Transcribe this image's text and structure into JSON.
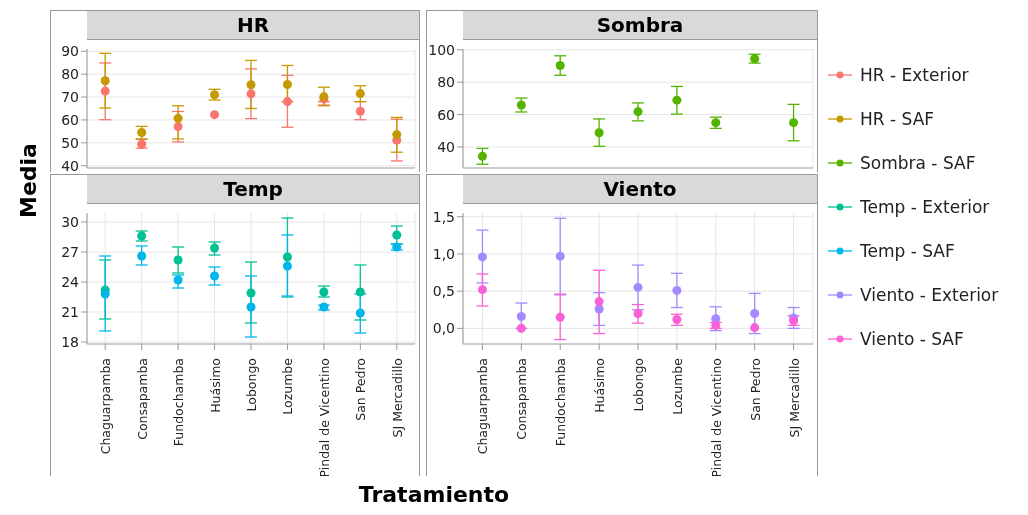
{
  "chart_data": [
    {
      "type": "scatter",
      "title": "HR",
      "ylabel": "Media",
      "categories": [
        "Chaguarpamba",
        "Consapamba",
        "Fundochamba",
        "Huásimo",
        "Lobongo",
        "Lozumbe",
        "Pindal de Vicentino",
        "San Pedro",
        "SJ Mercadillo"
      ],
      "ylim": [
        39,
        91
      ],
      "yticks": [
        40,
        50,
        60,
        70,
        80,
        90
      ],
      "tick_labels": "y",
      "grid": true,
      "marker": "circle",
      "legend": "right",
      "series": [
        {
          "name": "HR - Exterior",
          "color": "#f8766d",
          "values": [
            72.6,
            49.4,
            57.1,
            62.3,
            71.4,
            68.0,
            69.2,
            63.8,
            51.2
          ],
          "errors": [
            [
              60.1,
              84.9
            ],
            [
              47.7,
              51.5
            ],
            [
              50.4,
              63.7
            ],
            null,
            [
              60.6,
              82.3
            ],
            [
              56.8,
              79.5
            ],
            [
              66.5,
              68.0
            ],
            [
              60.1,
              68.0
            ],
            [
              42.1,
              60.3
            ]
          ]
        },
        {
          "name": "HR - SAF",
          "color": "#c49a00",
          "values": [
            77.1,
            54.5,
            60.7,
            71.0,
            75.4,
            75.5,
            70.2,
            71.5,
            53.6
          ],
          "errors": [
            [
              65.2,
              89.1
            ],
            [
              51.7,
              57.2
            ],
            [
              51.7,
              66.2
            ],
            [
              68.7,
              73.4
            ],
            [
              65.0,
              86.0
            ],
            [
              68.0,
              83.8
            ],
            [
              66.2,
              74.3
            ],
            [
              68.0,
              74.9
            ],
            [
              45.9,
              61.1
            ]
          ]
        }
      ]
    },
    {
      "type": "scatter",
      "title": "Sombra",
      "categories": [
        "Chaguarpamba",
        "Consapamba",
        "Fundochamba",
        "Huásimo",
        "Lobongo",
        "Lozumbe",
        "Pindal de Vicentino",
        "San Pedro",
        "SJ Mercadillo"
      ],
      "ylim": [
        27,
        100.5
      ],
      "yticks": [
        40,
        60,
        80,
        100
      ],
      "tick_labels": "y",
      "grid": true,
      "marker": "circle",
      "legend": "right",
      "series": [
        {
          "name": "Sombra - SAF",
          "color": "#53b400",
          "values": [
            34.2,
            65.9,
            90.3,
            48.8,
            61.8,
            68.9,
            55.0,
            94.5,
            55.0
          ],
          "errors": [
            [
              29.3,
              39.1
            ],
            [
              61.6,
              70.2
            ],
            [
              84.3,
              96.3
            ],
            [
              40.4,
              57.3
            ],
            [
              56.1,
              67.2
            ],
            [
              60.3,
              77.4
            ],
            [
              51.5,
              58.4
            ],
            [
              91.8,
              97.3
            ],
            [
              43.8,
              66.3
            ]
          ]
        }
      ]
    },
    {
      "type": "scatter",
      "title": "Temp",
      "xlabel": "Tratamiento",
      "categories": [
        "Chaguarpamba",
        "Consapamba",
        "Fundochamba",
        "Huásimo",
        "Lobongo",
        "Lozumbe",
        "Pindal de Vicentino",
        "San Pedro",
        "SJ Mercadillo"
      ],
      "ylim": [
        17.8,
        30.9
      ],
      "yticks": [
        18,
        21,
        24,
        27,
        30
      ],
      "grid": true,
      "marker": "circle",
      "legend": "right",
      "series": [
        {
          "name": "Temp - Exterior",
          "color": "#00c094",
          "values": [
            23.2,
            28.6,
            26.2,
            27.4,
            22.9,
            26.5,
            23.0,
            23.0,
            28.7
          ],
          "errors": [
            [
              20.3,
              26.2
            ],
            [
              28.1,
              29.1
            ],
            [
              24.9,
              27.5
            ],
            [
              26.7,
              28.0
            ],
            [
              19.9,
              26.0
            ],
            [
              22.5,
              30.4
            ],
            [
              22.5,
              23.6
            ],
            [
              20.2,
              25.7
            ],
            [
              27.8,
              29.6
            ]
          ]
        },
        {
          "name": "Temp - SAF",
          "color": "#00b6eb",
          "values": [
            22.8,
            26.6,
            24.2,
            24.6,
            21.5,
            25.6,
            21.5,
            20.9,
            27.5
          ],
          "errors": [
            [
              19.1,
              26.6
            ],
            [
              25.7,
              27.6
            ],
            [
              23.4,
              24.7
            ],
            [
              23.7,
              25.5
            ],
            [
              18.5,
              24.6
            ],
            [
              22.6,
              28.7
            ],
            [
              21.2,
              21.7
            ],
            [
              18.9,
              22.8
            ],
            [
              27.2,
              27.8
            ]
          ]
        }
      ]
    },
    {
      "type": "scatter",
      "title": "Viento",
      "categories": [
        "Chaguarpamba",
        "Consapamba",
        "Fundochamba",
        "Huásimo",
        "Lobongo",
        "Lozumbe",
        "Pindal de Vicentino",
        "San Pedro",
        "SJ Mercadillo"
      ],
      "ylim": [
        -0.21,
        1.55
      ],
      "yticks": [
        {
          "value": 0,
          "label": "0,0"
        },
        {
          "value": 0.5,
          "label": "0,5"
        },
        {
          "value": 1,
          "label": "1,0"
        },
        {
          "value": 1.5,
          "label": "1,5"
        }
      ],
      "grid": true,
      "marker": "circle",
      "legend": "right",
      "series": [
        {
          "name": "Viento - Exterior",
          "color": "#a58aff",
          "values": [
            0.96,
            0.16,
            0.97,
            0.26,
            0.55,
            0.51,
            0.13,
            0.2,
            0.14
          ],
          "errors": [
            [
              0.61,
              1.32
            ],
            [
              0.0,
              0.34
            ],
            [
              0.45,
              1.48
            ],
            [
              0.04,
              0.48
            ],
            [
              0.25,
              0.85
            ],
            [
              0.28,
              0.74
            ],
            [
              -0.03,
              0.29
            ],
            [
              -0.07,
              0.47
            ],
            [
              0.0,
              0.28
            ]
          ]
        },
        {
          "name": "Viento - SAF",
          "color": "#fb61d7",
          "values": [
            0.52,
            0.0,
            0.15,
            0.36,
            0.2,
            0.12,
            0.04,
            0.01,
            0.1
          ],
          "errors": [
            [
              0.3,
              0.73
            ],
            null,
            [
              -0.15,
              0.46
            ],
            [
              -0.07,
              0.78
            ],
            [
              0.07,
              0.32
            ],
            [
              0.04,
              0.19
            ],
            [
              0.0,
              0.08
            ],
            null,
            [
              0.04,
              0.17
            ]
          ]
        }
      ]
    }
  ]
}
